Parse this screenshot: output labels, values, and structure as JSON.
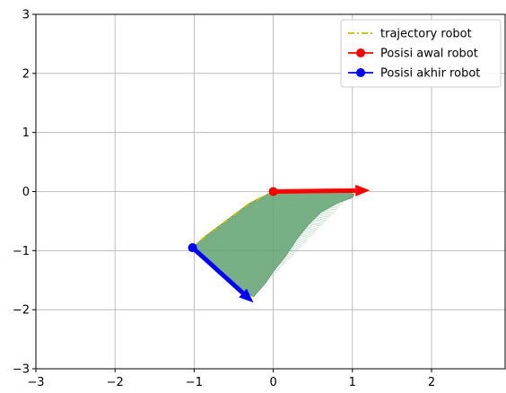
{
  "chart_data": {
    "type": "line",
    "xlim": [
      -3,
      2.93
    ],
    "ylim": [
      -3,
      3
    ],
    "x_ticks": [
      -3,
      -2,
      -1,
      0,
      1,
      2
    ],
    "y_ticks": [
      -3,
      -2,
      -1,
      0,
      1,
      2,
      3
    ],
    "grid": true,
    "legend_position": "top-right",
    "series": [
      {
        "name": "trajectory robot",
        "style": "dash-dot",
        "color": "#bfbf00",
        "x": [
          0,
          -0.3,
          -0.6,
          -0.85,
          -1.02
        ],
        "y": [
          0,
          -0.2,
          -0.5,
          -0.75,
          -0.95
        ]
      },
      {
        "name": "Posisi awal robot",
        "marker": "circle",
        "color": "#ff0000",
        "x": [
          0
        ],
        "y": [
          0
        ],
        "arrow_to": [
          1.22,
          0.02
        ]
      },
      {
        "name": "Posisi akhir robot",
        "marker": "circle",
        "color": "#0000ff",
        "x": [
          -1.02
        ],
        "y": [
          -0.95
        ],
        "arrow_to": [
          -0.25,
          -1.88
        ]
      }
    ],
    "orientation_field": {
      "color": "#5f9f6f",
      "outline_x": [
        0,
        0.25,
        0.5,
        0.7,
        0.9,
        1.02,
        1.0,
        0.8,
        0.6,
        0.45,
        0.3,
        0.15,
        0.0,
        -0.1,
        -0.25,
        -0.5,
        -0.75,
        -1.02,
        -0.85,
        -0.6,
        -0.3
      ],
      "outline_y": [
        0,
        0.02,
        0.03,
        0.03,
        0.02,
        -0.05,
        -0.1,
        -0.2,
        -0.35,
        -0.55,
        -0.8,
        -1.1,
        -1.35,
        -1.55,
        -1.78,
        -1.6,
        -1.3,
        -0.95,
        -0.75,
        -0.5,
        -0.2
      ]
    }
  }
}
